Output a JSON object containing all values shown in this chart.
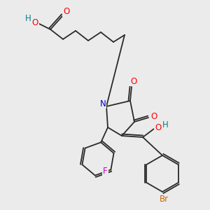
{
  "bg_color": "#ebebeb",
  "bond_color": "#2a2a2a",
  "atom_colors": {
    "O": "#ff0000",
    "N": "#0000cc",
    "F": "#cc00cc",
    "Br": "#cc6600",
    "H": "#008080",
    "C": "#2a2a2a"
  },
  "fig_size": [
    3.0,
    3.0
  ],
  "dpi": 100
}
